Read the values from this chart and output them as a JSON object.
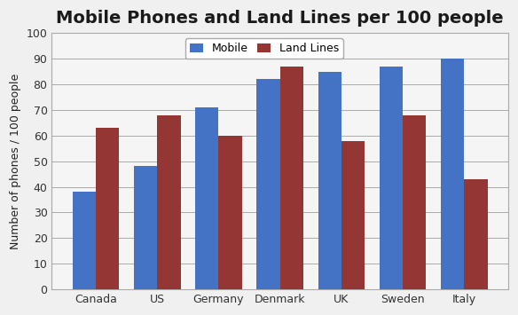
{
  "title": "Mobile Phones and Land Lines per 100 people",
  "ylabel": "Number of phones / 100 people",
  "categories": [
    "Canada",
    "US",
    "Germany",
    "Denmark",
    "UK",
    "Sweden",
    "Italy"
  ],
  "mobile": [
    38,
    48,
    71,
    82,
    85,
    87,
    90
  ],
  "landlines": [
    63,
    68,
    60,
    87,
    58,
    68,
    43
  ],
  "mobile_color": "#4472C4",
  "landline_color": "#943634",
  "legend_labels": [
    "Mobile",
    "Land Lines"
  ],
  "ylim": [
    0,
    100
  ],
  "yticks": [
    0,
    10,
    20,
    30,
    40,
    50,
    60,
    70,
    80,
    90,
    100
  ],
  "bar_width": 0.38,
  "title_fontsize": 14,
  "axis_fontsize": 9,
  "tick_fontsize": 9,
  "legend_fontsize": 9,
  "background_color": "#f0f0f0",
  "plot_bg_color": "#f5f5f5",
  "grid_color": "#aaaaaa",
  "spine_color": "#aaaaaa"
}
